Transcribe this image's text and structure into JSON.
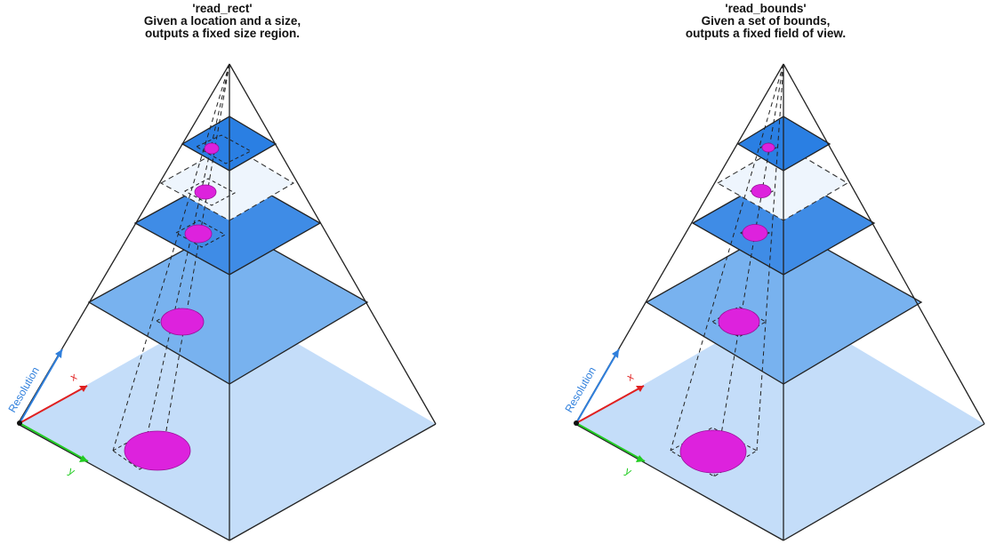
{
  "panels": [
    {
      "id": "left",
      "title_lines": [
        "'read_rect'",
        "Given a location and a size,",
        "outputs a fixed size region."
      ]
    },
    {
      "id": "right",
      "title_lines": [
        "'read_bounds'",
        "Given a set of bounds,",
        "outputs a fixed field of view."
      ]
    }
  ],
  "axes": {
    "resolution_label": "Resolution",
    "x_label": "x",
    "y_label": "y",
    "resolution_color": "#2f7fdc",
    "x_color": "#e02020",
    "y_color": "#22cc22"
  },
  "colors": {
    "level_fill": [
      "#c4ddf9",
      "#78b2ef",
      "#3f8ce6",
      "#eef5fd",
      "#2a7fe3"
    ],
    "blob": "#dd22dd",
    "outline": "#222222"
  }
}
